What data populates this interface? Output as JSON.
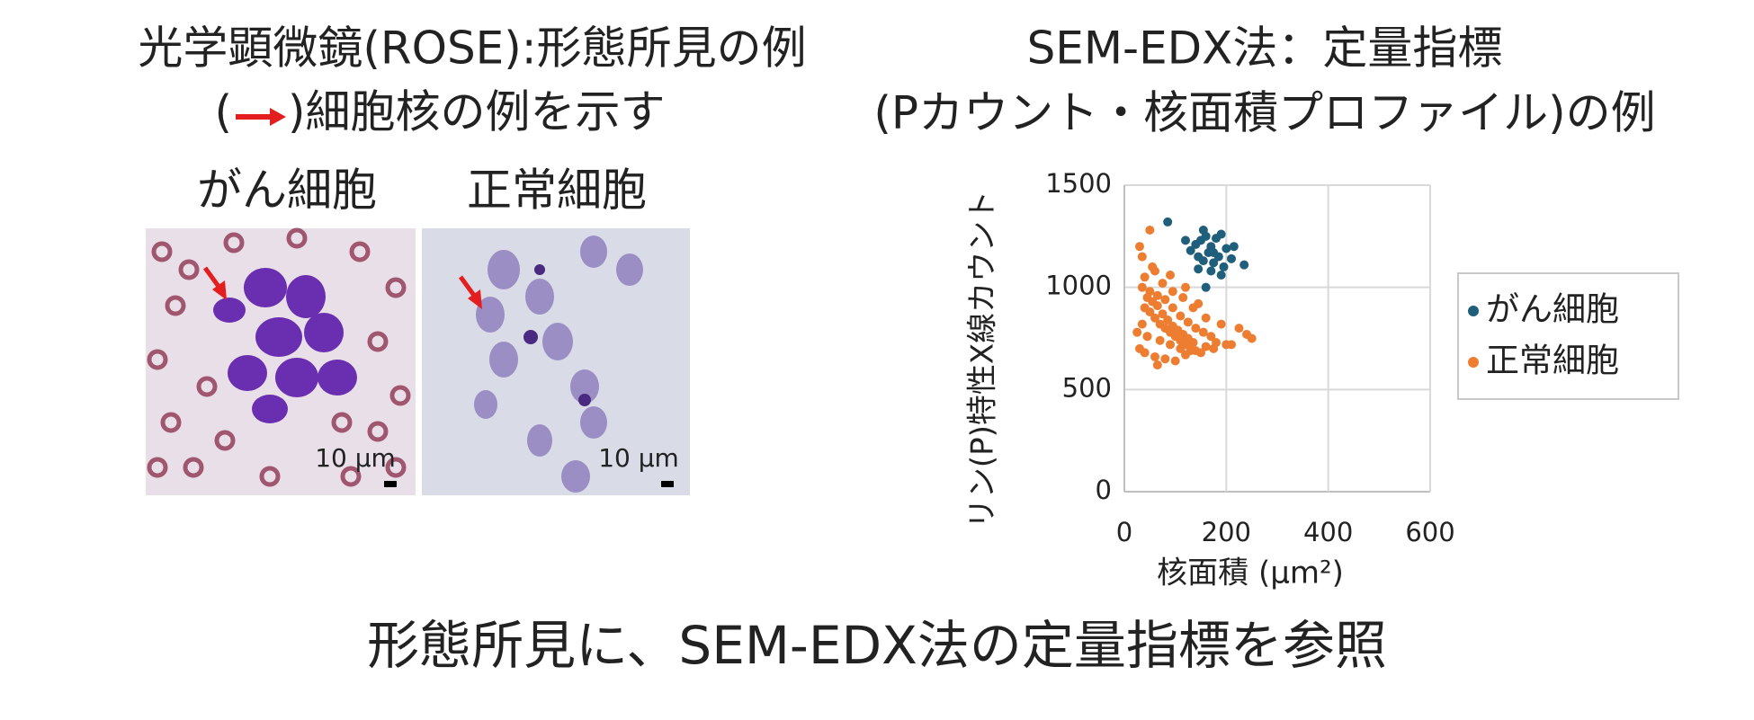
{
  "left_title": {
    "line1": "光学顕微鏡(ROSE):形態所見の例",
    "line2_open": "(",
    "line2_rest": ")細胞核の例を示す"
  },
  "right_title": {
    "line1": "SEM-EDX法：定量指標",
    "line2": "(Pカウント・核面積プロファイル)の例"
  },
  "images": [
    {
      "label": "がん細胞",
      "scale": "10 µm"
    },
    {
      "label": "正常細胞",
      "scale": "10 µm"
    }
  ],
  "footer": "形態所見に、SEM-EDX法の定量指標を参照",
  "chart_data": {
    "type": "scatter",
    "xlabel": "核面積 (µm²)",
    "ylabel": "リン(P)特性X線カウント",
    "xlim": [
      0,
      600
    ],
    "ylim": [
      0,
      1500
    ],
    "xticks": [
      0,
      200,
      400,
      600
    ],
    "yticks": [
      0,
      500,
      1000,
      1500
    ],
    "grid": true,
    "series": [
      {
        "name": "がん細胞",
        "color": "#1f5f7c",
        "x": [
          150,
          160,
          170,
          180,
          130,
          145,
          155,
          165,
          175,
          185,
          195,
          140,
          200,
          210,
          235,
          120,
          170,
          190,
          160,
          155,
          190,
          85,
          215,
          145,
          175
        ],
        "values": [
          1230,
          1250,
          1200,
          1240,
          1180,
          1150,
          1130,
          1170,
          1120,
          1150,
          1100,
          1210,
          1190,
          1140,
          1110,
          1230,
          1080,
          1060,
          1000,
          1280,
          1260,
          1320,
          1200,
          1090,
          1170
        ]
      },
      {
        "name": "正常細胞",
        "color": "#ed7d31",
        "x": [
          40,
          50,
          60,
          70,
          80,
          90,
          100,
          110,
          120,
          130,
          45,
          55,
          65,
          75,
          85,
          95,
          105,
          115,
          125,
          135,
          35,
          50,
          65,
          80,
          95,
          110,
          125,
          140,
          155,
          170,
          30,
          40,
          60,
          80,
          100,
          120,
          140,
          160,
          180,
          200,
          25,
          45,
          70,
          90,
          110,
          130,
          150,
          175,
          210,
          250,
          40,
          55,
          75,
          95,
          115,
          135,
          160,
          190,
          225,
          240,
          30,
          35,
          50,
          60,
          90,
          120,
          145,
          65,
          35,
          45
        ],
        "values": [
          900,
          880,
          850,
          820,
          800,
          780,
          760,
          740,
          720,
          700,
          950,
          930,
          910,
          870,
          840,
          810,
          790,
          770,
          750,
          730,
          1000,
          980,
          960,
          940,
          900,
          860,
          830,
          800,
          780,
          760,
          700,
          680,
          660,
          650,
          640,
          670,
          690,
          710,
          730,
          720,
          780,
          760,
          740,
          720,
          700,
          690,
          680,
          700,
          720,
          750,
          1050,
          1100,
          1020,
          980,
          950,
          900,
          850,
          820,
          800,
          770,
          1200,
          1150,
          1280,
          1080,
          1060,
          1000,
          920,
          620,
          820,
          760
        ]
      }
    ]
  }
}
